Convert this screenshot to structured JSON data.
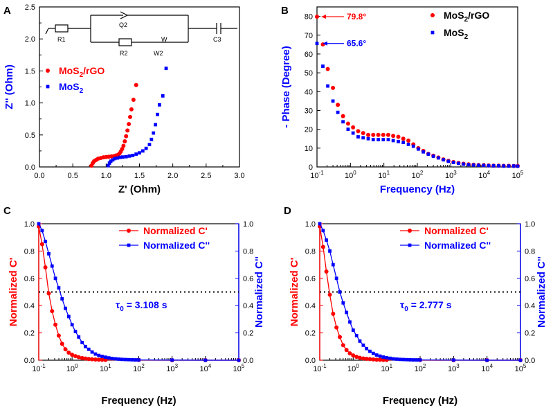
{
  "colors": {
    "red": "#ff0000",
    "blue": "#0000ff",
    "axis": "#000000"
  },
  "chart_data": [
    {
      "panel": "A",
      "type": "scatter",
      "xlabel": "Z' (Ohm)",
      "ylabel": "Z'' (Ohm)",
      "xlim": [
        0,
        3.0
      ],
      "ylim": [
        0,
        2.5
      ],
      "xticks": [
        "0.0",
        "0.5",
        "1.0",
        "1.5",
        "2.0",
        "2.5",
        "3.0"
      ],
      "yticks": [
        "0.0",
        "0.5",
        "1.0",
        "1.5",
        "2.0",
        "2.5"
      ],
      "legend": "left",
      "circuit": {
        "labels": [
          "R1",
          "Q2",
          "R2",
          "W",
          "W2",
          "C3"
        ]
      },
      "series": [
        {
          "name": "MoS2/rGO",
          "sub": "2",
          "name_pre": "MoS",
          "name_post": "/rGO",
          "color": "#ff0000",
          "x": [
            0.78,
            0.8,
            0.82,
            0.85,
            0.88,
            0.92,
            0.96,
            1.0,
            1.04,
            1.08,
            1.12,
            1.15,
            1.18,
            1.2,
            1.22,
            1.24,
            1.26,
            1.28,
            1.3,
            1.32,
            1.34,
            1.36,
            1.38,
            1.41,
            1.45
          ],
          "y": [
            0.02,
            0.06,
            0.09,
            0.11,
            0.13,
            0.14,
            0.15,
            0.155,
            0.16,
            0.165,
            0.17,
            0.18,
            0.19,
            0.21,
            0.24,
            0.28,
            0.33,
            0.4,
            0.48,
            0.57,
            0.67,
            0.78,
            0.9,
            1.05,
            1.28
          ]
        },
        {
          "name": "MoS2",
          "sub": "2",
          "name_pre": "MoS",
          "name_post": "",
          "color": "#0000ff",
          "x": [
            1.03,
            1.05,
            1.07,
            1.1,
            1.13,
            1.17,
            1.21,
            1.25,
            1.3,
            1.35,
            1.4,
            1.45,
            1.5,
            1.55,
            1.6,
            1.65,
            1.68,
            1.71,
            1.74,
            1.77,
            1.8,
            1.85,
            1.9
          ],
          "y": [
            0.02,
            0.06,
            0.09,
            0.11,
            0.13,
            0.14,
            0.15,
            0.155,
            0.16,
            0.17,
            0.18,
            0.2,
            0.22,
            0.25,
            0.29,
            0.35,
            0.43,
            0.53,
            0.66,
            0.82,
            0.97,
            1.11,
            1.54
          ]
        }
      ]
    },
    {
      "panel": "B",
      "type": "scatter",
      "xscale": "log",
      "xlabel": "Frequency (Hz)",
      "ylabel": "- Phase (Degree)",
      "xlim": [
        0.1,
        100000
      ],
      "ylim": [
        0,
        85
      ],
      "yticks": [
        "0",
        "10",
        "20",
        "30",
        "40",
        "50",
        "60",
        "70",
        "80"
      ],
      "legend": "top-right",
      "annotations": [
        {
          "text": "79.8°",
          "color": "#ff0000"
        },
        {
          "text": "65.6°",
          "color": "#0000ff"
        }
      ],
      "series": [
        {
          "name": "MoS2/rGO",
          "name_pre": "MoS",
          "sub": "2",
          "name_post": "/rGO",
          "color": "#ff0000",
          "x": [
            0.1,
            0.15,
            0.21,
            0.3,
            0.42,
            0.6,
            0.85,
            1.2,
            1.7,
            2.4,
            3.4,
            4.8,
            6.8,
            9.6,
            13.5,
            19,
            27,
            38,
            54,
            76,
            107,
            151,
            213,
            301,
            425,
            600,
            848,
            1200,
            1700,
            2400,
            3400,
            4800,
            6800,
            9600,
            13500,
            19000,
            27000,
            38000,
            54000,
            76000,
            100000
          ],
          "y": [
            79.8,
            65.1,
            52,
            42,
            33,
            27,
            23,
            21,
            19,
            18,
            17,
            17,
            17,
            17,
            17,
            16.5,
            16,
            15,
            14,
            12,
            10,
            8.5,
            7,
            6,
            5,
            4,
            3.2,
            2.6,
            2.1,
            1.7,
            1.4,
            1.2,
            1,
            0.9,
            0.8,
            0.7,
            0.7,
            0.6,
            0.6,
            0.5,
            0.5
          ]
        },
        {
          "name": "MoS2",
          "name_pre": "MoS",
          "sub": "2",
          "name_post": "",
          "color": "#0000ff",
          "x": [
            0.1,
            0.15,
            0.21,
            0.3,
            0.42,
            0.6,
            0.85,
            1.2,
            1.7,
            2.4,
            3.4,
            4.8,
            6.8,
            9.6,
            13.5,
            19,
            27,
            38,
            54,
            76,
            107,
            151,
            213,
            301,
            425,
            600,
            848,
            1200,
            1700,
            2400,
            3400,
            4800,
            6800,
            9600,
            13500,
            19000,
            27000,
            38000,
            54000,
            76000,
            100000
          ],
          "y": [
            65.6,
            53.5,
            43,
            35,
            29,
            24,
            20,
            18,
            16,
            15.5,
            15,
            14.5,
            14.5,
            14.5,
            14.5,
            14,
            13.5,
            13,
            12,
            11,
            9.5,
            8,
            6.8,
            5.7,
            4.8,
            3.8,
            3,
            2.4,
            1.9,
            1.5,
            1.2,
            1,
            0.9,
            0.8,
            0.7,
            0.6,
            0.6,
            0.5,
            0.5,
            0.5,
            0.4
          ]
        }
      ]
    },
    {
      "panel": "C",
      "type": "line",
      "xscale": "log",
      "xlabel": "Frequency (Hz)",
      "ylabel_left": "Normalized C'",
      "ylabel_right": "Normalized C''",
      "xlim": [
        0.1,
        100000
      ],
      "ylim": [
        0,
        1.0
      ],
      "yticks": [
        "0.0",
        "0.2",
        "0.4",
        "0.6",
        "0.8",
        "1.0"
      ],
      "legend": "top-right",
      "reference_line": 0.5,
      "tau_value": "= 3.108 s",
      "series": [
        {
          "name": "Normalized C'",
          "color": "#ff0000",
          "marker": "circle",
          "x": [
            0.1,
            0.126,
            0.158,
            0.2,
            0.251,
            0.316,
            0.398,
            0.501,
            0.631,
            0.794,
            1,
            1.26,
            1.58,
            2,
            2.51,
            3.16,
            3.98,
            5.01,
            6.31,
            7.94,
            10,
            100,
            1000,
            10000,
            100000
          ],
          "y": [
            0.98,
            0.85,
            0.68,
            0.49,
            0.36,
            0.26,
            0.18,
            0.12,
            0.08,
            0.055,
            0.04,
            0.03,
            0.022,
            0.016,
            0.012,
            0.009,
            0.007,
            0.005,
            0.004,
            0.003,
            0.002,
            0.001,
            0,
            0,
            0
          ]
        },
        {
          "name": "Normalized C''",
          "color": "#0000ff",
          "marker": "square",
          "x": [
            0.1,
            0.126,
            0.158,
            0.2,
            0.251,
            0.316,
            0.398,
            0.501,
            0.631,
            0.794,
            1,
            1.26,
            1.58,
            2,
            2.51,
            3.16,
            3.98,
            5.01,
            6.31,
            7.94,
            10,
            12.6,
            15.8,
            20,
            25.1,
            31.6,
            39.8,
            50.1,
            63.1,
            79.4,
            100,
            1000,
            10000,
            100000
          ],
          "y": [
            1.0,
            0.95,
            0.87,
            0.78,
            0.69,
            0.6,
            0.53,
            0.45,
            0.38,
            0.32,
            0.26,
            0.21,
            0.17,
            0.13,
            0.1,
            0.08,
            0.06,
            0.045,
            0.035,
            0.028,
            0.022,
            0.017,
            0.013,
            0.01,
            0.008,
            0.006,
            0.005,
            0.004,
            0.003,
            0.002,
            0.002,
            0.001,
            0,
            0
          ]
        }
      ]
    },
    {
      "panel": "D",
      "type": "line",
      "xscale": "log",
      "xlabel": "Frequency (Hz)",
      "ylabel_left": "Normalized C'",
      "ylabel_right": "Normalized C''",
      "xlim": [
        0.1,
        100000
      ],
      "ylim": [
        0,
        1.0
      ],
      "yticks": [
        "0.0",
        "0.2",
        "0.4",
        "0.6",
        "0.8",
        "1.0"
      ],
      "legend": "top-right",
      "reference_line": 0.5,
      "tau_value": "= 2.777 s",
      "series": [
        {
          "name": "Normalized C'",
          "color": "#ff0000",
          "marker": "circle",
          "x": [
            0.1,
            0.126,
            0.158,
            0.2,
            0.251,
            0.316,
            0.398,
            0.501,
            0.631,
            0.794,
            1,
            1.26,
            1.58,
            2,
            2.51,
            3.16,
            3.98,
            5.01,
            6.31,
            7.94,
            10,
            100,
            1000,
            10000,
            100000
          ],
          "y": [
            0.98,
            0.83,
            0.65,
            0.48,
            0.34,
            0.24,
            0.17,
            0.11,
            0.075,
            0.05,
            0.035,
            0.025,
            0.018,
            0.013,
            0.01,
            0.008,
            0.006,
            0.004,
            0.003,
            0.002,
            0.002,
            0.001,
            0,
            0,
            0
          ]
        },
        {
          "name": "Normalized C''",
          "color": "#0000ff",
          "marker": "square",
          "x": [
            0.1,
            0.126,
            0.158,
            0.2,
            0.251,
            0.316,
            0.398,
            0.501,
            0.631,
            0.794,
            1,
            1.26,
            1.58,
            2,
            2.51,
            3.16,
            3.98,
            5.01,
            6.31,
            7.94,
            10,
            12.6,
            15.8,
            20,
            25.1,
            31.6,
            39.8,
            50.1,
            63.1,
            79.4,
            100,
            1000,
            10000,
            100000
          ],
          "y": [
            1.0,
            0.95,
            0.88,
            0.8,
            0.7,
            0.6,
            0.5,
            0.42,
            0.35,
            0.28,
            0.22,
            0.18,
            0.14,
            0.11,
            0.085,
            0.065,
            0.05,
            0.038,
            0.03,
            0.023,
            0.018,
            0.014,
            0.01,
            0.008,
            0.006,
            0.005,
            0.004,
            0.003,
            0.002,
            0.002,
            0.002,
            0.001,
            0,
            0
          ]
        }
      ]
    }
  ]
}
